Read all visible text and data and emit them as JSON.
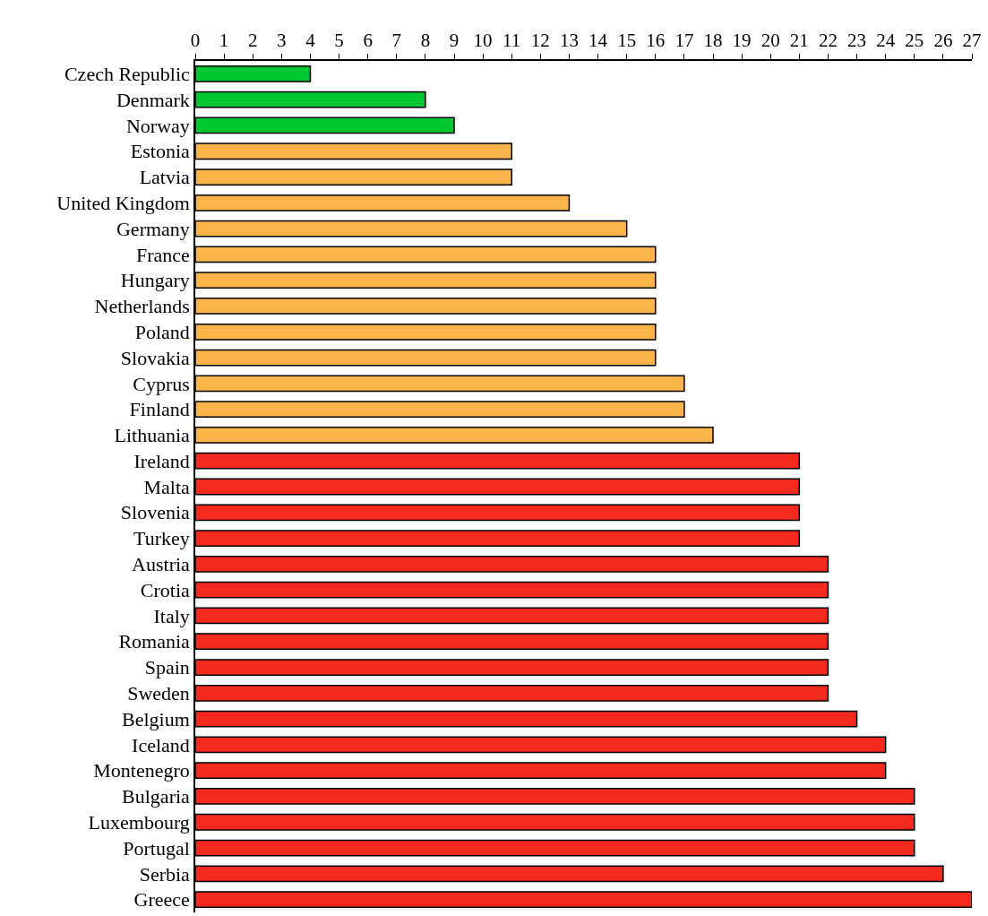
{
  "chart_data": {
    "type": "bar",
    "orientation": "horizontal",
    "categories": [
      "Czech Republic",
      "Denmark",
      "Norway",
      "Estonia",
      "Latvia",
      "United Kingdom",
      "Germany",
      "France",
      "Hungary",
      "Netherlands",
      "Poland",
      "Slovakia",
      "Cyprus",
      "Finland",
      "Lithuania",
      "Ireland",
      "Malta",
      "Slovenia",
      "Turkey",
      "Austria",
      "Crotia",
      "Italy",
      "Romania",
      "Spain",
      "Sweden",
      "Belgium",
      "Iceland",
      "Montenegro",
      "Bulgaria",
      "Luxembourg",
      "Portugal",
      "Serbia",
      "Greece"
    ],
    "values": [
      4,
      8,
      9,
      11,
      11,
      13,
      15,
      16,
      16,
      16,
      16,
      16,
      17,
      17,
      18,
      21,
      21,
      21,
      21,
      22,
      22,
      22,
      22,
      22,
      22,
      23,
      24,
      24,
      25,
      25,
      25,
      26,
      27
    ],
    "colors": [
      "#00c832",
      "#00c832",
      "#00c832",
      "#f9b54a",
      "#f9b54a",
      "#f9b54a",
      "#f9b54a",
      "#f9b54a",
      "#f9b54a",
      "#f9b54a",
      "#f9b54a",
      "#f9b54a",
      "#f9b54a",
      "#f9b54a",
      "#f9b54a",
      "#f52a1e",
      "#f52a1e",
      "#f52a1e",
      "#f52a1e",
      "#f52a1e",
      "#f52a1e",
      "#f52a1e",
      "#f52a1e",
      "#f52a1e",
      "#f52a1e",
      "#f52a1e",
      "#f52a1e",
      "#f52a1e",
      "#f52a1e",
      "#f52a1e",
      "#f52a1e",
      "#f52a1e",
      "#f52a1e"
    ],
    "xlim": [
      0,
      27
    ],
    "xticks": [
      0,
      1,
      2,
      3,
      4,
      5,
      6,
      7,
      8,
      9,
      10,
      11,
      12,
      13,
      14,
      15,
      16,
      17,
      18,
      19,
      20,
      21,
      22,
      23,
      24,
      25,
      26,
      27
    ]
  }
}
